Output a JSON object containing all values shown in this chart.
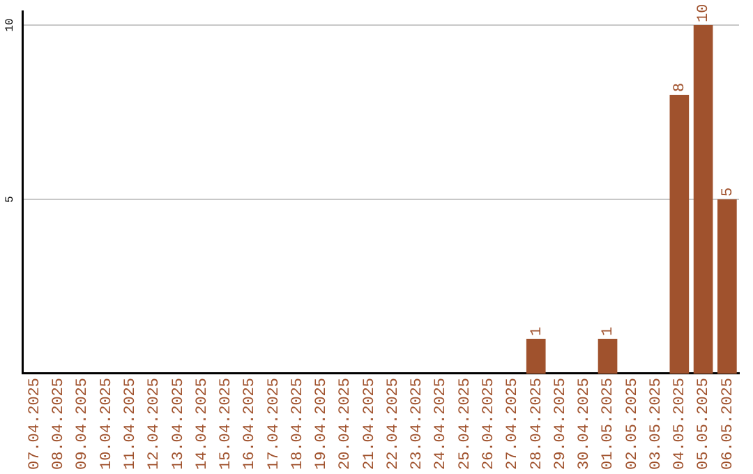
{
  "chart_data": {
    "type": "bar",
    "categories": [
      "07.04.2025",
      "08.04.2025",
      "09.04.2025",
      "10.04.2025",
      "11.04.2025",
      "12.04.2025",
      "13.04.2025",
      "14.04.2025",
      "15.04.2025",
      "16.04.2025",
      "17.04.2025",
      "18.04.2025",
      "19.04.2025",
      "20.04.2025",
      "21.04.2025",
      "22.04.2025",
      "23.04.2025",
      "24.04.2025",
      "25.04.2025",
      "26.04.2025",
      "27.04.2025",
      "28.04.2025",
      "29.04.2025",
      "30.04.2025",
      "01.05.2025",
      "02.05.2025",
      "03.05.2025",
      "04.05.2025",
      "05.05.2025",
      "06.05.2025"
    ],
    "values": [
      0,
      0,
      0,
      0,
      0,
      0,
      0,
      0,
      0,
      0,
      0,
      0,
      0,
      0,
      0,
      0,
      0,
      0,
      0,
      0,
      0,
      1,
      0,
      0,
      1,
      0,
      0,
      8,
      10,
      5
    ],
    "value_labels": [
      null,
      null,
      null,
      null,
      null,
      null,
      null,
      null,
      null,
      null,
      null,
      null,
      null,
      null,
      null,
      null,
      null,
      null,
      null,
      null,
      null,
      "1",
      null,
      null,
      "1",
      null,
      null,
      "8",
      "10",
      "5"
    ],
    "color": "#a0522d",
    "ylim": [
      0,
      10.4
    ],
    "yticks": [
      5,
      10
    ],
    "grid": "y",
    "legend": false
  }
}
